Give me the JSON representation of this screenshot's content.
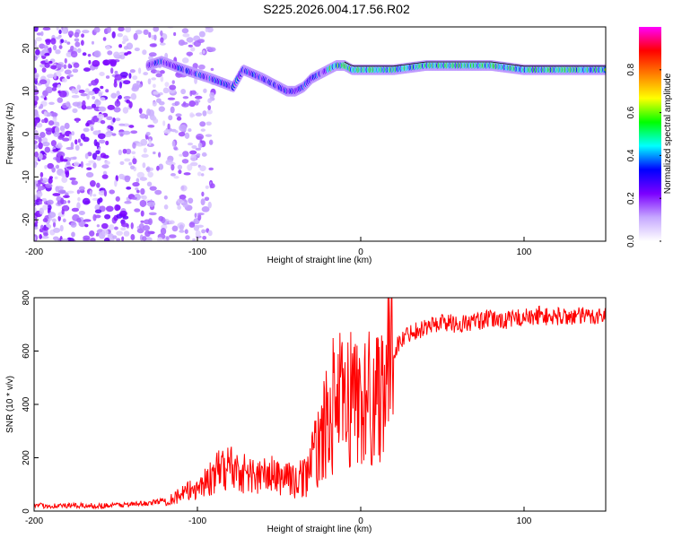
{
  "figure": {
    "title": "S225.2026.004.17.56.R02"
  },
  "chart_data": [
    {
      "type": "heatmap",
      "title": "",
      "xlabel": "Height of straight line (km)",
      "ylabel": "Frequency (Hz)",
      "xlim": [
        -200,
        150
      ],
      "ylim": [
        -25,
        25
      ],
      "xticks": [
        -200,
        -100,
        0,
        100
      ],
      "yticks": [
        -20,
        -10,
        0,
        10,
        20
      ],
      "grid": false,
      "ridge": {
        "x": [
          -130,
          -122,
          -115,
          -108,
          -100,
          -92,
          -85,
          -78,
          -72,
          -66,
          -60,
          -55,
          -50,
          -45,
          -40,
          -35,
          -30,
          -25,
          -20,
          -15,
          -10,
          -5,
          0,
          10,
          20,
          40,
          60,
          80,
          100,
          120,
          150
        ],
        "y": [
          16,
          17,
          16,
          15,
          14,
          13,
          12,
          11,
          15,
          14,
          13,
          12,
          11,
          10,
          10,
          11,
          13,
          14,
          15,
          16,
          16,
          15,
          15,
          15,
          15,
          16,
          16,
          16,
          15,
          15,
          15
        ]
      },
      "colorbar": {
        "label": "Normalized spectral amplitude",
        "ticks": [
          0.0,
          0.2,
          0.4,
          0.6,
          0.8
        ],
        "range": [
          0,
          1
        ],
        "colors": [
          "#ffffff",
          "#c6a8ff",
          "#7b00ff",
          "#0000ff",
          "#00ffff",
          "#00ff00",
          "#ffff00",
          "#ff8000",
          "#ff0000",
          "#ff00ff"
        ]
      }
    },
    {
      "type": "line",
      "title": "",
      "xlabel": "Height of straight line (km)",
      "ylabel": "SNR (10 * v/v)",
      "xlim": [
        -200,
        150
      ],
      "ylim": [
        0,
        800
      ],
      "xticks": [
        -200,
        -100,
        0,
        100
      ],
      "yticks": [
        0,
        200,
        400,
        600,
        800
      ],
      "grid": false,
      "color": "#ff0000",
      "series": [
        {
          "x": [
            -200,
            -180,
            -160,
            -140,
            -130,
            -120,
            -110,
            -100,
            -95,
            -90,
            -85,
            -80,
            -75,
            -70,
            -65,
            -60,
            -55,
            -50,
            -45,
            -40,
            -35,
            -30,
            -25,
            -20,
            -15,
            -10,
            -5,
            0,
            5,
            10,
            15,
            20,
            25,
            30,
            40,
            50,
            60,
            70,
            80,
            90,
            100,
            105,
            110,
            115,
            120,
            130,
            140,
            150
          ],
          "y": [
            20,
            20,
            20,
            25,
            30,
            40,
            60,
            90,
            110,
            130,
            160,
            170,
            150,
            140,
            130,
            130,
            140,
            120,
            140,
            100,
            130,
            180,
            260,
            340,
            430,
            380,
            450,
            400,
            420,
            440,
            560,
            600,
            640,
            670,
            690,
            710,
            700,
            710,
            720,
            715,
            730,
            720,
            740,
            725,
            730,
            730,
            730,
            735
          ]
        }
      ]
    }
  ]
}
